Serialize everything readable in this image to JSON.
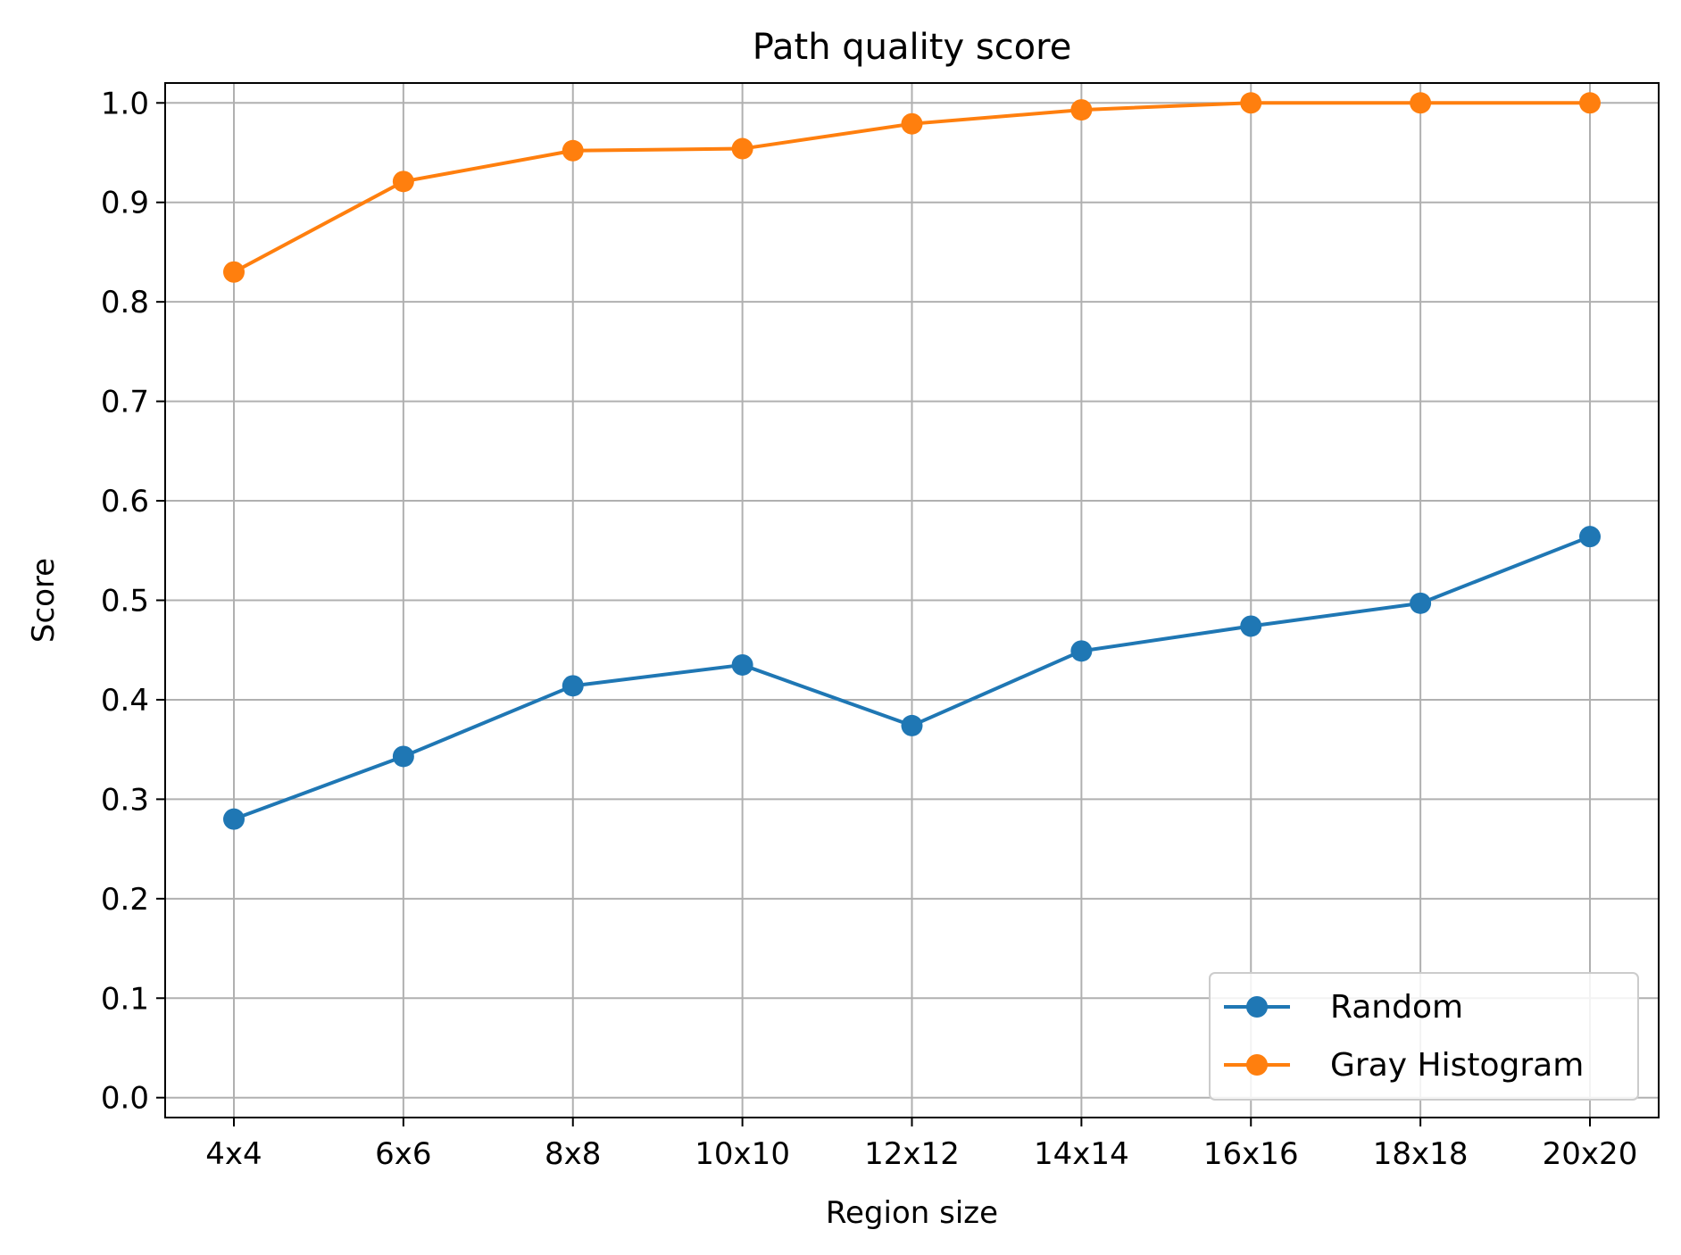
{
  "chart_data": {
    "type": "line",
    "title": "Path quality score",
    "xlabel": "Region size",
    "ylabel": "Score",
    "categories": [
      "4x4",
      "6x6",
      "8x8",
      "10x10",
      "12x12",
      "14x14",
      "16x16",
      "18x18",
      "20x20"
    ],
    "ylim": [
      -0.02,
      1.02
    ],
    "yticks": [
      "0.0",
      "0.1",
      "0.2",
      "0.3",
      "0.4",
      "0.5",
      "0.6",
      "0.7",
      "0.8",
      "0.9",
      "1.0"
    ],
    "grid": true,
    "legend_position": "bottom-right",
    "series": [
      {
        "name": "Random",
        "color": "#1f77b4",
        "marker": "circle",
        "values": [
          0.28,
          0.343,
          0.414,
          0.435,
          0.374,
          0.449,
          0.474,
          0.497,
          0.564
        ]
      },
      {
        "name": "Gray Histogram",
        "color": "#ff7f0e",
        "marker": "circle",
        "values": [
          0.83,
          0.921,
          0.952,
          0.954,
          0.979,
          0.993,
          1.0,
          1.0,
          1.0
        ]
      }
    ]
  }
}
